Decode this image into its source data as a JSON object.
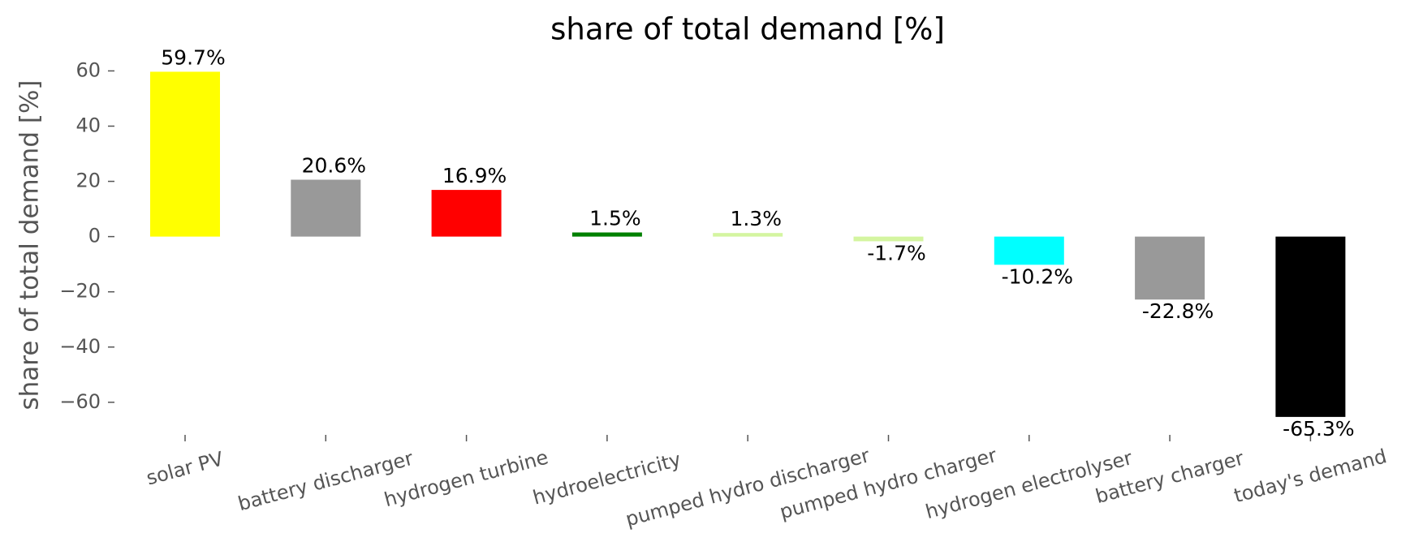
{
  "chart_data": {
    "type": "bar",
    "title": "share of total demand [%]",
    "y_label": "share of total demand [%]",
    "categories": [
      "solar PV",
      "battery discharger",
      "hydrogen turbine",
      "hydroelectricity",
      "pumped hydro discharger",
      "pumped hydro charger",
      "hydrogen electrolyser",
      "battery charger",
      "today's demand"
    ],
    "values": [
      59.7,
      20.6,
      16.9,
      1.5,
      1.3,
      -1.7,
      -10.2,
      -22.8,
      -65.3
    ],
    "value_labels": [
      "59.7%",
      "20.6%",
      "16.9%",
      "1.5%",
      "1.3%",
      "-1.7%",
      "-10.2%",
      "-22.8%",
      "-65.3%"
    ],
    "colors": [
      "#ffff00",
      "#999999",
      "#ff0000",
      "#008000",
      "#d4f5a0",
      "#d4f5a0",
      "#00ffff",
      "#999999",
      "#000000"
    ],
    "ylim": [
      -71.8,
      65.7
    ],
    "yticks": [
      {
        "value": -60,
        "label": "−60"
      },
      {
        "value": -40,
        "label": "−40"
      },
      {
        "value": -20,
        "label": "−20"
      },
      0,
      20,
      40,
      60
    ],
    "grid": false
  }
}
